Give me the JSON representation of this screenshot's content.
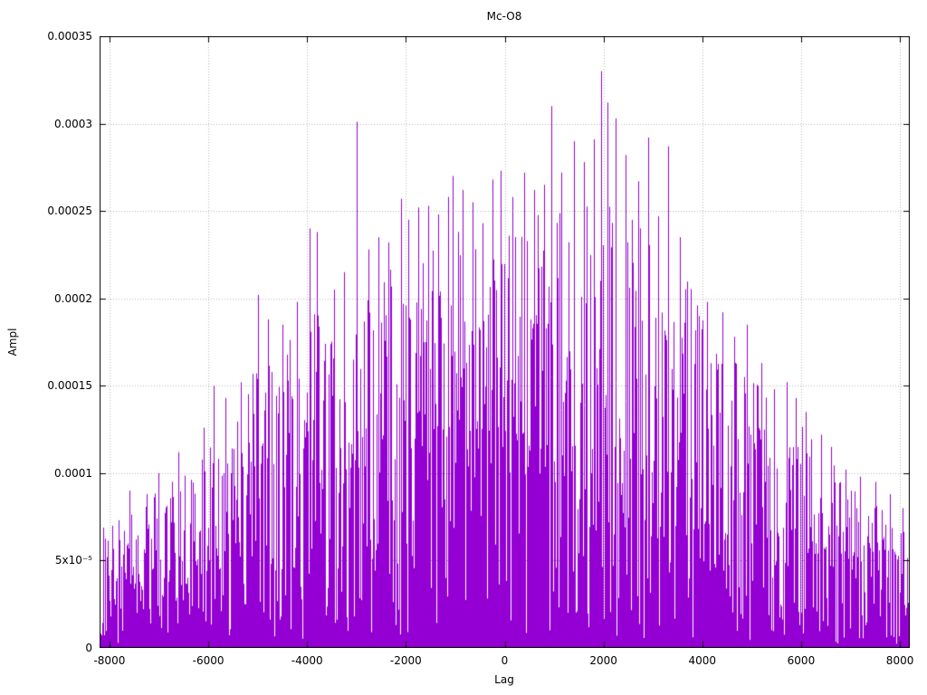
{
  "chart_data": {
    "type": "bar",
    "subtype": "impulses",
    "title": "Mc-O8",
    "xlabel": "Lag",
    "ylabel": "Ampl",
    "xlim": [
      -8200,
      8200
    ],
    "ylim": [
      0,
      0.00035
    ],
    "grid": true,
    "legend": "none",
    "series_color": "#9400d3",
    "grid_color": "#b9b9b9",
    "border_color": "#000000",
    "x_ticks": [
      -8000,
      -6000,
      -4000,
      -2000,
      0,
      2000,
      4000,
      6000,
      8000
    ],
    "x_tick_labels": [
      "-8000",
      "-6000",
      "-4000",
      "-2000",
      "0",
      "2000",
      "4000",
      "6000",
      "8000"
    ],
    "y_ticks": [
      0,
      5e-05,
      0.0001,
      0.00015,
      0.0002,
      0.00025,
      0.0003,
      0.00035
    ],
    "y_tick_labels": [
      "0",
      "5x10⁻⁵",
      "0.0001",
      "0.00015",
      "0.0002",
      "0.00025",
      "0.0003",
      "0.00035"
    ],
    "description": "Dense noise-like cross-correlation amplitude vs lag; vertical impulse lines from zero whose upper envelope rises from ~0.00008 at the edges to a maximum of ~0.00033 near lag 2000.",
    "envelope_max": [
      [
        -8200,
        8.5e-05
      ],
      [
        -7500,
        9e-05
      ],
      [
        -7000,
        9.8e-05
      ],
      [
        -6500,
        0.00011
      ],
      [
        -6000,
        0.00013
      ],
      [
        -5500,
        0.00014
      ],
      [
        -5000,
        0.00018
      ],
      [
        -4500,
        0.000185
      ],
      [
        -4000,
        0.00021
      ],
      [
        -3500,
        0.00021
      ],
      [
        -3000,
        0.00024
      ],
      [
        -2500,
        0.00023
      ],
      [
        -2000,
        0.000245
      ],
      [
        -1500,
        0.00025
      ],
      [
        -1000,
        0.00026
      ],
      [
        -500,
        0.00025
      ],
      [
        0,
        0.00026
      ],
      [
        500,
        0.000265
      ],
      [
        1000,
        0.00028
      ],
      [
        1500,
        0.000275
      ],
      [
        2000,
        0.000295
      ],
      [
        2500,
        0.000285
      ],
      [
        3000,
        0.000265
      ],
      [
        3500,
        0.000245
      ],
      [
        4000,
        0.000205
      ],
      [
        4500,
        0.00019
      ],
      [
        5000,
        0.00018
      ],
      [
        5500,
        0.000155
      ],
      [
        6000,
        0.000145
      ],
      [
        6500,
        0.000122
      ],
      [
        7000,
        0.000108
      ],
      [
        7500,
        9.5e-05
      ],
      [
        8200,
        8.2e-05
      ]
    ],
    "notable_peaks": [
      [
        -7600,
        9e-05
      ],
      [
        -7250,
        8.8e-05
      ],
      [
        -7000,
        0.0001
      ],
      [
        -6600,
        0.000112
      ],
      [
        -6100,
        0.000126
      ],
      [
        -5900,
        0.00015
      ],
      [
        -5650,
        0.000143
      ],
      [
        -5350,
        0.000152
      ],
      [
        -5000,
        0.000202
      ],
      [
        -4800,
        0.000188
      ],
      [
        -4500,
        0.000185
      ],
      [
        -4200,
        0.000198
      ],
      [
        -3950,
        0.00024
      ],
      [
        -3800,
        0.000238
      ],
      [
        -3450,
        0.000205
      ],
      [
        -3250,
        0.000215
      ],
      [
        -3000,
        0.000301
      ],
      [
        -2750,
        0.000228
      ],
      [
        -2550,
        0.000235
      ],
      [
        -2350,
        0.000232
      ],
      [
        -2100,
        0.000257
      ],
      [
        -1950,
        0.000245
      ],
      [
        -1750,
        0.000252
      ],
      [
        -1550,
        0.000253
      ],
      [
        -1350,
        0.000248
      ],
      [
        -1150,
        0.000258
      ],
      [
        -1050,
        0.00027
      ],
      [
        -850,
        0.000262
      ],
      [
        -650,
        0.000255
      ],
      [
        -450,
        0.000243
      ],
      [
        -250,
        0.000268
      ],
      [
        -80,
        0.000273
      ],
      [
        150,
        0.000258
      ],
      [
        400,
        0.000272
      ],
      [
        600,
        0.000262
      ],
      [
        800,
        0.000265
      ],
      [
        950,
        0.00031
      ],
      [
        1150,
        0.000272
      ],
      [
        1400,
        0.00029
      ],
      [
        1600,
        0.000278
      ],
      [
        1800,
        0.000291
      ],
      [
        1950,
        0.00033
      ],
      [
        2080,
        0.000312
      ],
      [
        2250,
        0.000303
      ],
      [
        2450,
        0.000282
      ],
      [
        2700,
        0.000267
      ],
      [
        2900,
        0.000292
      ],
      [
        3100,
        0.000247
      ],
      [
        3300,
        0.000287
      ],
      [
        3550,
        0.000235
      ],
      [
        3700,
        0.000202
      ],
      [
        3900,
        0.000196
      ],
      [
        4100,
        0.000198
      ],
      [
        4400,
        0.000192
      ],
      [
        4650,
        0.000178
      ],
      [
        4900,
        0.000185
      ],
      [
        5200,
        0.000163
      ],
      [
        5450,
        0.000148
      ],
      [
        5700,
        0.000152
      ],
      [
        5900,
        0.000143
      ],
      [
        6100,
        0.000135
      ],
      [
        6400,
        0.000122
      ],
      [
        6600,
        0.000115
      ],
      [
        6900,
        0.000102
      ],
      [
        7200,
        9.8e-05
      ],
      [
        7500,
        9.5e-05
      ],
      [
        7800,
        8.8e-05
      ],
      [
        8050,
        8e-05
      ]
    ]
  }
}
